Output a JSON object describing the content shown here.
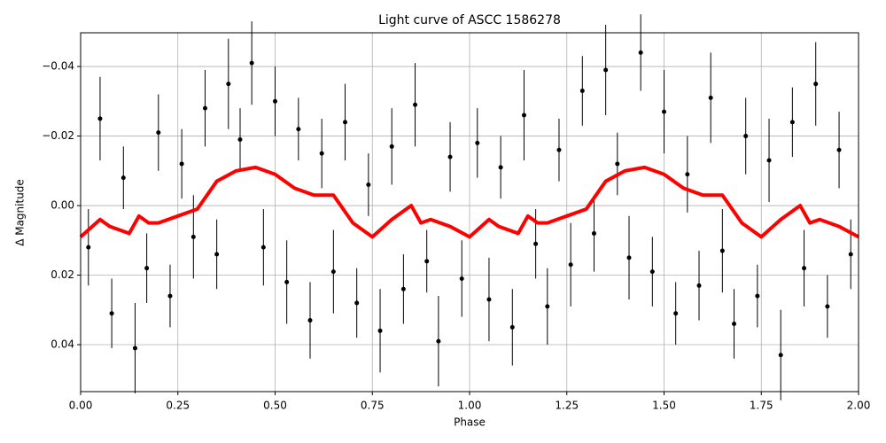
{
  "chart_data": {
    "type": "scatter",
    "title": "Light curve of ASCC 1586278",
    "xlabel": "Phase",
    "ylabel": "Δ Magnitude",
    "xlim": [
      0,
      2
    ],
    "ylim": [
      -0.0497,
      0.0535
    ],
    "invert_y": true,
    "grid": true,
    "xticks": [
      {
        "value": 0,
        "label": "0.00"
      },
      {
        "value": 0.25,
        "label": "0.25"
      },
      {
        "value": 0.5,
        "label": "0.50"
      },
      {
        "value": 0.75,
        "label": "0.75"
      },
      {
        "value": 1,
        "label": "1.00"
      },
      {
        "value": 1.25,
        "label": "1.25"
      },
      {
        "value": 1.5,
        "label": "1.50"
      },
      {
        "value": 1.75,
        "label": "1.75"
      },
      {
        "value": 2,
        "label": "2.00"
      }
    ],
    "yticks": [
      {
        "value": -0.04,
        "label": "−0.04"
      },
      {
        "value": -0.02,
        "label": "−0.02"
      },
      {
        "value": 0,
        "label": "0.00"
      },
      {
        "value": 0.02,
        "label": "0.02"
      },
      {
        "value": 0.04,
        "label": "0.04"
      }
    ],
    "points": {
      "color": "#000000",
      "x": [
        0.02,
        0.05,
        0.08,
        0.11,
        0.14,
        0.17,
        0.2,
        0.23,
        0.26,
        0.29,
        0.32,
        0.35,
        0.38,
        0.41,
        0.44,
        0.47,
        0.5,
        0.53,
        0.56,
        0.59,
        0.62,
        0.65,
        0.68,
        0.71,
        0.74,
        0.77,
        0.8,
        0.83,
        0.86,
        0.89,
        0.92,
        0.95,
        0.98,
        1.02,
        1.05,
        1.08,
        1.11,
        1.14,
        1.17,
        1.2,
        1.23,
        1.26,
        1.29,
        1.32,
        1.35,
        1.38,
        1.41,
        1.44,
        1.47,
        1.5,
        1.53,
        1.56,
        1.59,
        1.62,
        1.65,
        1.68,
        1.71,
        1.74,
        1.77,
        1.8,
        1.83,
        1.86,
        1.89,
        1.92,
        1.95,
        1.98
      ],
      "y": [
        0.012,
        -0.025,
        0.031,
        -0.008,
        0.041,
        0.018,
        -0.021,
        0.026,
        -0.012,
        0.009,
        -0.028,
        0.014,
        -0.035,
        -0.019,
        -0.041,
        0.012,
        -0.03,
        0.022,
        -0.022,
        0.033,
        -0.015,
        0.019,
        -0.024,
        0.028,
        -0.006,
        0.036,
        -0.017,
        0.024,
        -0.029,
        0.016,
        0.039,
        -0.014,
        0.021,
        -0.018,
        0.027,
        -0.011,
        0.035,
        -0.026,
        0.011,
        0.029,
        -0.016,
        0.017,
        -0.033,
        0.008,
        -0.039,
        -0.012,
        0.015,
        -0.044,
        0.019,
        -0.027,
        0.031,
        -0.009,
        0.023,
        -0.031,
        0.013,
        0.034,
        -0.02,
        0.026,
        -0.013,
        0.043,
        -0.024,
        0.018,
        -0.035,
        0.029,
        -0.016,
        0.014
      ],
      "errors": [
        0.011,
        0.012,
        0.01,
        0.009,
        0.013,
        0.01,
        0.011,
        0.009,
        0.01,
        0.012,
        0.011,
        0.01,
        0.013,
        0.009,
        0.012,
        0.011,
        0.01,
        0.012,
        0.009,
        0.011,
        0.01,
        0.012,
        0.011,
        0.01,
        0.009,
        0.012,
        0.011,
        0.01,
        0.012,
        0.009,
        0.013,
        0.01,
        0.011,
        0.01,
        0.012,
        0.009,
        0.011,
        0.013,
        0.01,
        0.011,
        0.009,
        0.012,
        0.01,
        0.011,
        0.013,
        0.009,
        0.012,
        0.011,
        0.01,
        0.012,
        0.009,
        0.011,
        0.01,
        0.013,
        0.012,
        0.01,
        0.011,
        0.009,
        0.012,
        0.013,
        0.01,
        0.011,
        0.012,
        0.009,
        0.011,
        0.01
      ]
    },
    "curve": {
      "color": "#ff0000",
      "x": [
        0,
        0.05,
        0.075,
        0.1,
        0.125,
        0.15,
        0.175,
        0.2,
        0.25,
        0.3,
        0.35,
        0.4,
        0.45,
        0.5,
        0.55,
        0.6,
        0.65,
        0.7,
        0.75,
        0.8,
        0.85,
        0.875,
        0.9,
        0.95,
        1,
        1.05,
        1.075,
        1.1,
        1.125,
        1.15,
        1.175,
        1.2,
        1.25,
        1.3,
        1.35,
        1.4,
        1.45,
        1.5,
        1.55,
        1.6,
        1.65,
        1.7,
        1.75,
        1.8,
        1.85,
        1.875,
        1.9,
        1.95,
        2
      ],
      "values": [
        0.009,
        0.004,
        0.006,
        0.007,
        0.008,
        0.003,
        0.005,
        0.005,
        0.003,
        0.001,
        -0.007,
        -0.01,
        -0.011,
        -0.009,
        -0.005,
        -0.003,
        -0.003,
        0.005,
        0.009,
        0.004,
        0,
        0.005,
        0.004,
        0.006,
        0.009,
        0.004,
        0.006,
        0.007,
        0.008,
        0.003,
        0.005,
        0.005,
        0.003,
        0.001,
        -0.007,
        -0.01,
        -0.011,
        -0.009,
        -0.005,
        -0.003,
        -0.003,
        0.005,
        0.009,
        0.004,
        0,
        0.005,
        0.004,
        0.006,
        0.009
      ]
    }
  }
}
